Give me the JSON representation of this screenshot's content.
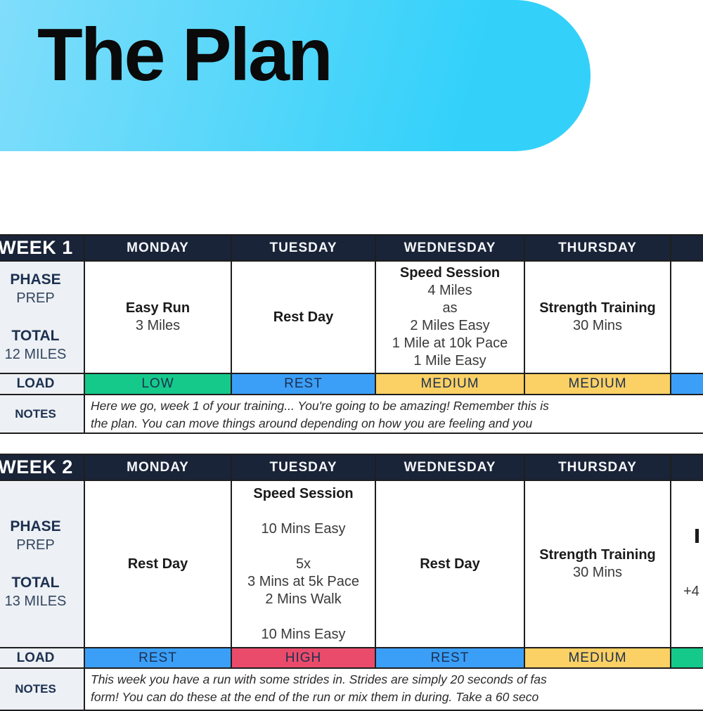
{
  "banner": {
    "title": "The Plan",
    "gradient_from": "#89DFFB",
    "gradient_to": "#33D1FA"
  },
  "days": [
    "MONDAY",
    "TUESDAY",
    "WEDNESDAY",
    "THURSDAY",
    ""
  ],
  "weeks": [
    {
      "label": "WEEK 1",
      "phase": {
        "label": "PHASE",
        "value": "PREP"
      },
      "total": {
        "label": "TOTAL",
        "value": "12 MILES"
      },
      "cells": [
        {
          "title": "Easy Run",
          "lines": [
            "3 Miles"
          ]
        },
        {
          "title": "Rest Day",
          "lines": []
        },
        {
          "title": "Speed Session",
          "lines": [
            "4 Miles",
            "as",
            "2 Miles Easy",
            "1 Mile at 10k Pace",
            "1 Mile Easy"
          ]
        },
        {
          "title": "Strength Training",
          "lines": [
            "30 Mins"
          ]
        },
        {
          "title": "",
          "lines": []
        }
      ],
      "load": {
        "label": "LOAD",
        "cells": [
          {
            "text": "LOW",
            "color": "#14C98A"
          },
          {
            "text": "REST",
            "color": "#3B9FF8"
          },
          {
            "text": "MEDIUM",
            "color": "#FBD064"
          },
          {
            "text": "MEDIUM",
            "color": "#FBD064"
          },
          {
            "text": "",
            "color": "#3B9FF8"
          }
        ]
      },
      "notes": {
        "label": "NOTES",
        "line1": "Here we go, week 1 of your training... You're going to be amazing! Remember this is",
        "line2": "the plan.  You can move things around depending on how you are feeling and you"
      }
    },
    {
      "label": "WEEK 2",
      "phase": {
        "label": "PHASE",
        "value": "PREP"
      },
      "total": {
        "label": "TOTAL",
        "value": "13 MILES"
      },
      "cells": [
        {
          "title": "Rest Day",
          "lines": []
        },
        {
          "title": "Speed Session",
          "lines": [
            "",
            "10 Mins Easy",
            "",
            "5x",
            "3 Mins at 5k Pace",
            "2 Mins Walk",
            "",
            "10 Mins Easy"
          ]
        },
        {
          "title": "Rest Day",
          "lines": []
        },
        {
          "title": "Strength Training",
          "lines": [
            "30 Mins"
          ]
        },
        {
          "title": "",
          "lines": [
            "+4"
          ]
        }
      ],
      "load": {
        "label": "LOAD",
        "cells": [
          {
            "text": "REST",
            "color": "#3B9FF8"
          },
          {
            "text": "HIGH",
            "color": "#EB4B6B"
          },
          {
            "text": "REST",
            "color": "#3B9FF8"
          },
          {
            "text": "MEDIUM",
            "color": "#FBD064"
          },
          {
            "text": "",
            "color": "#14C98A"
          }
        ]
      },
      "notes": {
        "label": "NOTES",
        "line1": "This week you have a run with some strides in. Strides are simply 20 seconds of fas",
        "line2": "form! You can do these at the end of the run or mix them in during. Take a 60 seco"
      }
    }
  ]
}
